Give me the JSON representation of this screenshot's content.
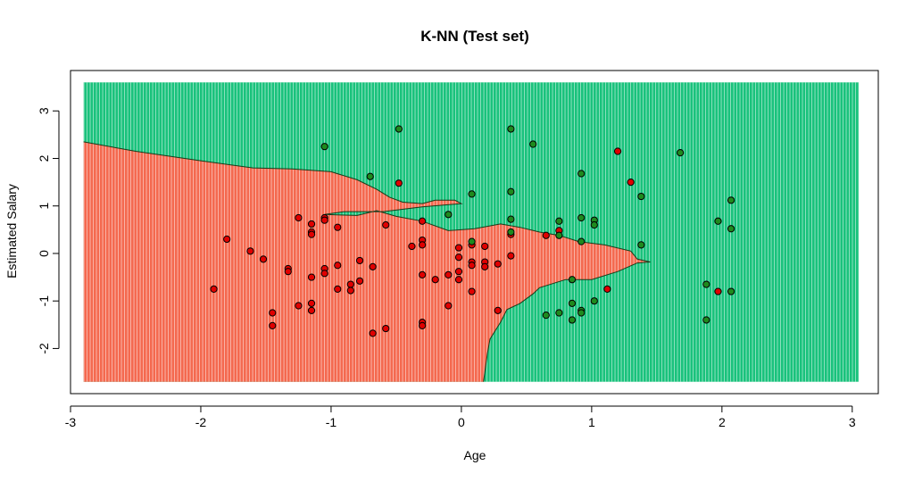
{
  "chart_data": {
    "type": "scatter",
    "title": "K-NN (Test set)",
    "xlabel": "Age",
    "ylabel": "Estimated Salary",
    "xlim": [
      -3.0,
      3.2
    ],
    "ylim": [
      -2.95,
      3.85
    ],
    "x_ticks": [
      -3,
      -2,
      -1,
      0,
      1,
      2,
      3
    ],
    "y_ticks": [
      -2,
      -1,
      0,
      1,
      2,
      3
    ],
    "grid": false,
    "legend": "none",
    "colors": {
      "class0_region": "#f4694f",
      "class1_region": "#19c27c",
      "class0_point": "#e00000",
      "class1_point": "#1e8a1e",
      "point_edge": "#000000"
    },
    "region_extent": {
      "x": [
        -2.9,
        3.05
      ],
      "y": [
        -2.7,
        3.6
      ]
    },
    "decision_boundary": [
      [
        -2.9,
        2.35
      ],
      [
        -2.5,
        2.15
      ],
      [
        -2.0,
        1.95
      ],
      [
        -1.6,
        1.8
      ],
      [
        -1.3,
        1.78
      ],
      [
        -1.0,
        1.72
      ],
      [
        -0.8,
        1.55
      ],
      [
        -0.65,
        1.35
      ],
      [
        -0.55,
        1.18
      ],
      [
        -0.45,
        1.08
      ],
      [
        -0.3,
        1.05
      ],
      [
        -0.2,
        1.12
      ],
      [
        -0.05,
        1.12
      ],
      [
        0.0,
        1.05
      ],
      [
        -0.3,
        0.98
      ],
      [
        -0.6,
        0.88
      ],
      [
        -0.9,
        0.88
      ],
      [
        -1.05,
        0.82
      ],
      [
        -0.8,
        0.8
      ],
      [
        -0.65,
        0.9
      ],
      [
        -0.5,
        0.78
      ],
      [
        -0.3,
        0.68
      ],
      [
        -0.1,
        0.48
      ],
      [
        0.1,
        0.52
      ],
      [
        0.3,
        0.62
      ],
      [
        0.45,
        0.55
      ],
      [
        0.6,
        0.45
      ],
      [
        0.75,
        0.38
      ],
      [
        0.9,
        0.25
      ],
      [
        1.1,
        0.18
      ],
      [
        1.3,
        0.05
      ],
      [
        1.35,
        -0.12
      ],
      [
        1.45,
        -0.18
      ],
      [
        1.35,
        -0.2
      ],
      [
        1.2,
        -0.38
      ],
      [
        1.0,
        -0.55
      ],
      [
        0.8,
        -0.55
      ],
      [
        0.6,
        -0.72
      ],
      [
        0.55,
        -0.85
      ],
      [
        0.45,
        -1.05
      ],
      [
        0.35,
        -1.18
      ],
      [
        0.3,
        -1.45
      ],
      [
        0.22,
        -1.8
      ],
      [
        0.2,
        -2.1
      ],
      [
        0.17,
        -2.7
      ]
    ],
    "series": [
      {
        "class": 0,
        "points": [
          [
            -1.9,
            -0.75
          ],
          [
            -1.8,
            0.3
          ],
          [
            -1.62,
            0.05
          ],
          [
            -1.52,
            -0.12
          ],
          [
            -1.45,
            -1.25
          ],
          [
            -1.45,
            -1.52
          ],
          [
            -1.33,
            -0.32
          ],
          [
            -1.33,
            -0.38
          ],
          [
            -1.25,
            0.75
          ],
          [
            -1.25,
            -1.1
          ],
          [
            -1.15,
            0.62
          ],
          [
            -1.15,
            0.45
          ],
          [
            -1.15,
            0.4
          ],
          [
            -1.15,
            -0.5
          ],
          [
            -1.15,
            -1.05
          ],
          [
            -1.15,
            -1.2
          ],
          [
            -1.05,
            0.75
          ],
          [
            -1.05,
            0.7
          ],
          [
            -1.05,
            -0.32
          ],
          [
            -1.05,
            -0.42
          ],
          [
            -0.95,
            0.55
          ],
          [
            -0.95,
            -0.25
          ],
          [
            -0.95,
            -0.75
          ],
          [
            -0.85,
            -0.65
          ],
          [
            -0.85,
            -0.78
          ],
          [
            -0.78,
            -0.15
          ],
          [
            -0.78,
            -0.58
          ],
          [
            -0.68,
            -0.28
          ],
          [
            -0.68,
            -1.68
          ],
          [
            -0.58,
            0.6
          ],
          [
            -0.58,
            -1.58
          ],
          [
            -0.48,
            1.48
          ],
          [
            -0.38,
            0.15
          ],
          [
            -0.3,
            0.68
          ],
          [
            -0.3,
            0.28
          ],
          [
            -0.3,
            0.18
          ],
          [
            -0.3,
            -0.45
          ],
          [
            -0.3,
            -1.45
          ],
          [
            -0.3,
            -1.52
          ],
          [
            -0.2,
            -0.55
          ],
          [
            -0.1,
            -0.45
          ],
          [
            -0.1,
            -1.1
          ],
          [
            -0.02,
            0.12
          ],
          [
            -0.02,
            -0.08
          ],
          [
            -0.02,
            -0.38
          ],
          [
            -0.02,
            -0.55
          ],
          [
            0.08,
            0.18
          ],
          [
            0.08,
            -0.18
          ],
          [
            0.08,
            -0.25
          ],
          [
            0.08,
            -0.8
          ],
          [
            0.18,
            0.15
          ],
          [
            0.18,
            -0.18
          ],
          [
            0.18,
            -0.28
          ],
          [
            0.28,
            -0.22
          ],
          [
            0.28,
            -1.2
          ],
          [
            0.38,
            0.4
          ],
          [
            0.38,
            -0.05
          ],
          [
            0.65,
            0.38
          ],
          [
            0.75,
            0.48
          ],
          [
            1.12,
            -0.75
          ],
          [
            1.2,
            2.15
          ],
          [
            1.3,
            1.5
          ],
          [
            1.97,
            -0.8
          ]
        ]
      },
      {
        "class": 1,
        "points": [
          [
            -1.05,
            2.25
          ],
          [
            -0.7,
            1.62
          ],
          [
            -0.48,
            2.62
          ],
          [
            -0.1,
            0.82
          ],
          [
            0.08,
            1.25
          ],
          [
            0.08,
            0.25
          ],
          [
            0.38,
            2.62
          ],
          [
            0.38,
            1.3
          ],
          [
            0.38,
            0.72
          ],
          [
            0.38,
            0.45
          ],
          [
            0.55,
            2.3
          ],
          [
            0.65,
            -1.3
          ],
          [
            0.75,
            0.68
          ],
          [
            0.75,
            0.38
          ],
          [
            0.75,
            -1.25
          ],
          [
            0.85,
            -0.55
          ],
          [
            0.85,
            -1.05
          ],
          [
            0.85,
            -1.4
          ],
          [
            0.92,
            1.68
          ],
          [
            0.92,
            0.75
          ],
          [
            0.92,
            0.25
          ],
          [
            0.92,
            -1.2
          ],
          [
            0.92,
            -1.25
          ],
          [
            1.02,
            0.7
          ],
          [
            1.02,
            0.6
          ],
          [
            1.02,
            -1.0
          ],
          [
            1.38,
            1.2
          ],
          [
            1.38,
            0.18
          ],
          [
            1.68,
            2.12
          ],
          [
            1.88,
            -0.65
          ],
          [
            1.88,
            -1.4
          ],
          [
            1.97,
            0.68
          ],
          [
            2.07,
            1.12
          ],
          [
            2.07,
            0.52
          ],
          [
            2.07,
            -0.8
          ]
        ]
      }
    ]
  }
}
